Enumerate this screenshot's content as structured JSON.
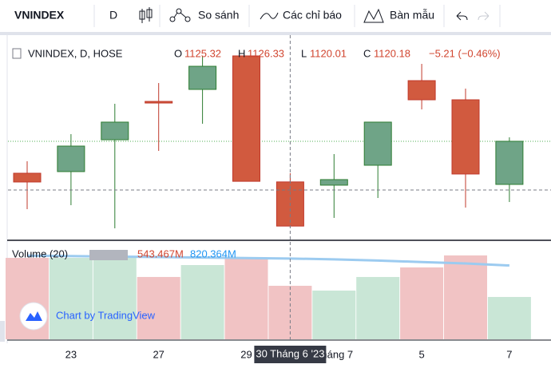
{
  "toolbar": {
    "symbol": "VNINDEX",
    "interval": "D",
    "compare": "So sánh",
    "indicators": "Các chỉ báo",
    "templates": "Bàn mẫu"
  },
  "legend": {
    "title": "VNINDEX, D, HOSE",
    "o": "O",
    "h": "H",
    "l": "L",
    "c": "C",
    "change": "−5.21 (−0.46%)"
  },
  "volume_legend": {
    "title": "Volume (20)",
    "value": "543.467M",
    "ma": "820.364M"
  },
  "watermark": "Chart by TradingView",
  "chart": {
    "type": "candlestick",
    "categories": [
      null,
      "23",
      null,
      "27",
      null,
      "29",
      null,
      "Tháng 7",
      null,
      "5",
      null,
      "7"
    ],
    "candles": [
      {
        "open": 1126.33,
        "high": 1127.72,
        "low": 1122.15,
        "close": 1125.31
      },
      {
        "open": 1126.52,
        "high": 1130.88,
        "low": 1122.61,
        "close": 1129.49
      },
      {
        "open": 1130.23,
        "high": 1134.41,
        "low": 1119.92,
        "close": 1132.28
      },
      {
        "open": 1134.69,
        "high": 1136.83,
        "low": 1128.93,
        "close": 1134.51
      },
      {
        "open": 1136.09,
        "high": 1139.99,
        "low": 1132.09,
        "close": 1138.78
      },
      {
        "open": 1139.99,
        "high": 1139.99,
        "low": 1125.39,
        "close": 1125.39
      },
      {
        "open": 1125.32,
        "high": 1126.33,
        "low": 1120.01,
        "close": 1120.18
      },
      {
        "open": 1124.94,
        "high": 1128.56,
        "low": 1121.13,
        "close": 1125.59
      },
      {
        "open": 1127.26,
        "high": 1132.28,
        "low": 1123.45,
        "close": 1132.28
      },
      {
        "open": 1137.11,
        "high": 1139.06,
        "low": 1133.76,
        "close": 1134.88
      },
      {
        "open": 1134.88,
        "high": 1136.18,
        "low": 1122.33,
        "close": 1126.24
      },
      {
        "open": 1125.03,
        "high": 1130.51,
        "low": 1122.98,
        "close": 1130.05
      }
    ],
    "volumes": [
      827,
      827,
      827,
      633,
      754,
      827,
      543.467,
      495,
      633,
      730,
      852,
      430
    ],
    "volume_ma": [
      850,
      845,
      840,
      835,
      830,
      825,
      820.364,
      812,
      800,
      785,
      770,
      750
    ],
    "crosshair_label": "30 Tháng 6 '23",
    "up_color": "#6fa487",
    "down_color": "#d15a3f",
    "volume_up_color": "#c9e6d6",
    "volume_down_color": "#f1c3c4",
    "ma_color": "#9ccbf0"
  }
}
